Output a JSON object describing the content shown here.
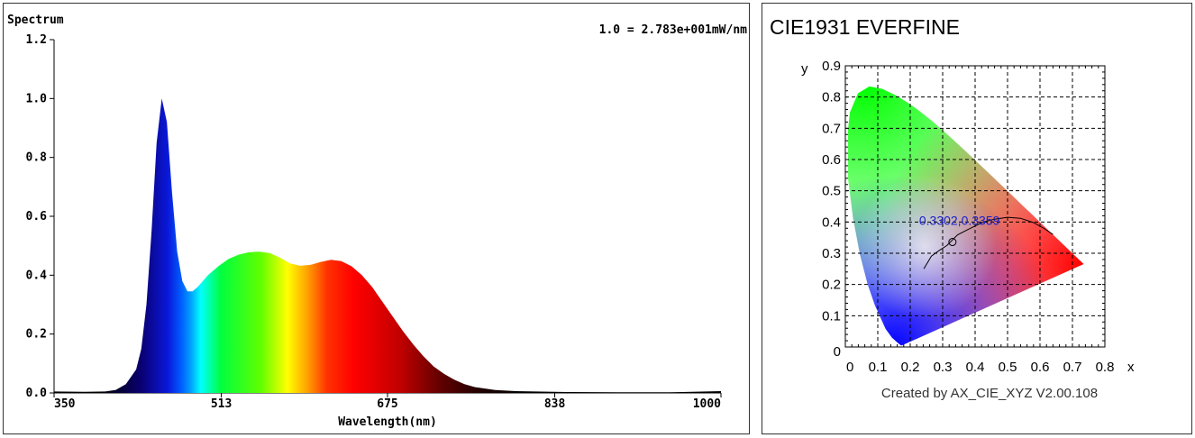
{
  "chart_data": [
    {
      "type": "area",
      "title": "Spectrum",
      "scale_note": "1.0 = 2.783e+001mW/nm",
      "xlabel": "Wavelength(nm)",
      "ylabel": "",
      "xlim": [
        350,
        1000
      ],
      "ylim": [
        0,
        1.2
      ],
      "x_ticks": [
        "350",
        "513",
        "675",
        "838",
        "1000"
      ],
      "y_ticks": [
        "0.0",
        "0.2",
        "0.4",
        "0.6",
        "0.8",
        "1.0",
        "1.2"
      ],
      "series": [
        {
          "x": [
            350,
            380,
            400,
            410,
            420,
            430,
            435,
            440,
            445,
            450,
            455,
            460,
            465,
            470,
            475,
            480,
            485,
            490,
            500,
            510,
            520,
            530,
            540,
            550,
            560,
            570,
            580,
            590,
            600,
            610,
            620,
            630,
            640,
            650,
            660,
            670,
            680,
            690,
            700,
            710,
            720,
            730,
            740,
            750,
            760,
            780,
            800,
            850,
            900,
            950,
            1000
          ],
          "values": [
            0.005,
            0.004,
            0.005,
            0.01,
            0.03,
            0.08,
            0.15,
            0.3,
            0.55,
            0.85,
            1.0,
            0.92,
            0.68,
            0.48,
            0.38,
            0.345,
            0.345,
            0.36,
            0.4,
            0.43,
            0.455,
            0.47,
            0.478,
            0.48,
            0.475,
            0.46,
            0.44,
            0.432,
            0.435,
            0.445,
            0.452,
            0.448,
            0.43,
            0.4,
            0.36,
            0.31,
            0.26,
            0.21,
            0.165,
            0.125,
            0.09,
            0.065,
            0.045,
            0.03,
            0.02,
            0.01,
            0.006,
            0.003,
            0.002,
            0.002,
            0.006
          ]
        }
      ]
    },
    {
      "type": "scatter",
      "title": "CIE1931  EVERFINE",
      "xlabel": "x",
      "ylabel": "y",
      "xlim": [
        0,
        0.8
      ],
      "ylim": [
        0,
        0.9
      ],
      "x_ticks": [
        "0",
        "0.1",
        "0.2",
        "0.3",
        "0.4",
        "0.5",
        "0.6",
        "0.7",
        "0.8"
      ],
      "y_ticks": [
        "0",
        "0.1",
        "0.2",
        "0.3",
        "0.4",
        "0.5",
        "0.6",
        "0.7",
        "0.8",
        "0.9"
      ],
      "point": {
        "x": 0.3302,
        "y": 0.3359,
        "label": "0.3302,0.3359"
      },
      "footer": "Created by AX_CIE_XYZ V2.00.108"
    }
  ]
}
